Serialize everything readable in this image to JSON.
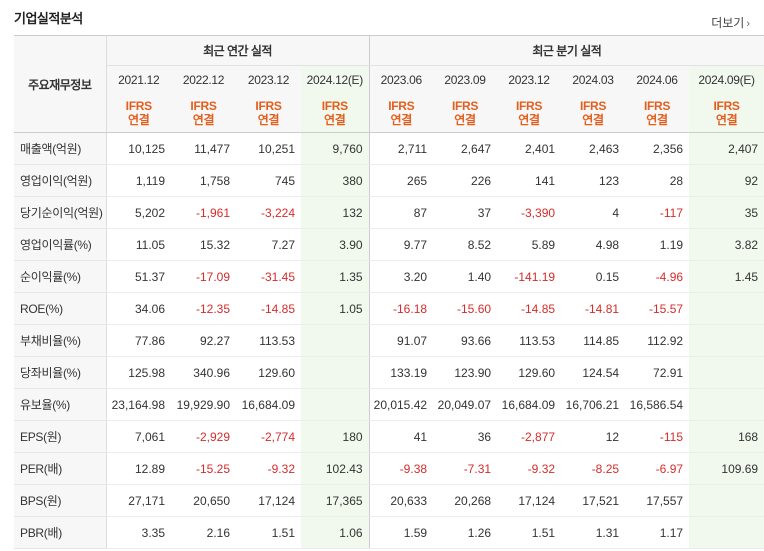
{
  "header": {
    "title": "기업실적분석",
    "more_label": "더보기",
    "more_arrow": "›"
  },
  "table": {
    "corner_label": "주요재무정보",
    "groups": [
      "최근 연간 실적",
      "최근 분기 실적"
    ],
    "periods": [
      "2021.12",
      "2022.12",
      "2023.12",
      "2024.12(E)",
      "2023.06",
      "2023.09",
      "2023.12",
      "2024.03",
      "2024.06",
      "2024.09(E)"
    ],
    "ifrs_top": "IFRS",
    "ifrs_bottom": "연결",
    "accent_color": "#e35f1d",
    "negative_color": "#d62b2b",
    "estimate_bg": "#f1f8ee",
    "rows": [
      {
        "label": "매출액(억원)",
        "values": [
          "10,125",
          "11,477",
          "10,251",
          "9,760",
          "2,711",
          "2,647",
          "2,401",
          "2,463",
          "2,356",
          "2,407"
        ]
      },
      {
        "label": "영업이익(억원)",
        "values": [
          "1,119",
          "1,758",
          "745",
          "380",
          "265",
          "226",
          "141",
          "123",
          "28",
          "92"
        ]
      },
      {
        "label": "당기순이익(억원)",
        "values": [
          "5,202",
          "-1,961",
          "-3,224",
          "132",
          "87",
          "37",
          "-3,390",
          "4",
          "-117",
          "35"
        ]
      },
      {
        "label": "영업이익률(%)",
        "values": [
          "11.05",
          "15.32",
          "7.27",
          "3.90",
          "9.77",
          "8.52",
          "5.89",
          "4.98",
          "1.19",
          "3.82"
        ]
      },
      {
        "label": "순이익률(%)",
        "values": [
          "51.37",
          "-17.09",
          "-31.45",
          "1.35",
          "3.20",
          "1.40",
          "-141.19",
          "0.15",
          "-4.96",
          "1.45"
        ]
      },
      {
        "label": "ROE(%)",
        "values": [
          "34.06",
          "-12.35",
          "-14.85",
          "1.05",
          "-16.18",
          "-15.60",
          "-14.85",
          "-14.81",
          "-15.57",
          ""
        ]
      },
      {
        "label": "부채비율(%)",
        "values": [
          "77.86",
          "92.27",
          "113.53",
          "",
          "91.07",
          "93.66",
          "113.53",
          "114.85",
          "112.92",
          ""
        ]
      },
      {
        "label": "당좌비율(%)",
        "values": [
          "125.98",
          "340.96",
          "129.60",
          "",
          "133.19",
          "123.90",
          "129.60",
          "124.54",
          "72.91",
          ""
        ]
      },
      {
        "label": "유보율(%)",
        "values": [
          "23,164.98",
          "19,929.90",
          "16,684.09",
          "",
          "20,015.42",
          "20,049.07",
          "16,684.09",
          "16,706.21",
          "16,586.54",
          ""
        ]
      },
      {
        "label": "EPS(원)",
        "values": [
          "7,061",
          "-2,929",
          "-2,774",
          "180",
          "41",
          "36",
          "-2,877",
          "12",
          "-115",
          "168"
        ]
      },
      {
        "label": "PER(배)",
        "values": [
          "12.89",
          "-15.25",
          "-9.32",
          "102.43",
          "-9.38",
          "-7.31",
          "-9.32",
          "-8.25",
          "-6.97",
          "109.69"
        ]
      },
      {
        "label": "BPS(원)",
        "values": [
          "27,171",
          "20,650",
          "17,124",
          "17,365",
          "20,633",
          "20,268",
          "17,124",
          "17,521",
          "17,557",
          ""
        ]
      },
      {
        "label": "PBR(배)",
        "values": [
          "3.35",
          "2.16",
          "1.51",
          "1.06",
          "1.59",
          "1.26",
          "1.51",
          "1.31",
          "1.17",
          ""
        ]
      }
    ]
  }
}
